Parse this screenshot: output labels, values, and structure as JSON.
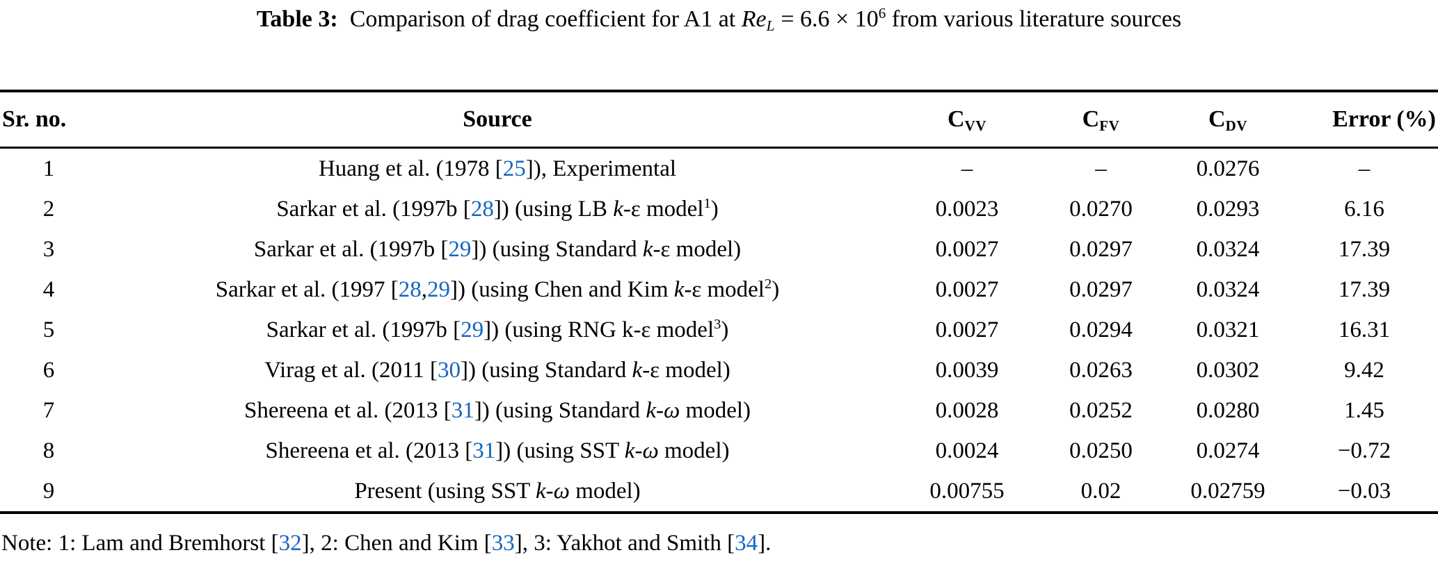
{
  "colors": {
    "text": "#000000",
    "background": "#ffffff",
    "citation_blue": "#1565c0"
  },
  "caption": {
    "segments": [
      {
        "t": "Table 3:",
        "s": "b"
      },
      {
        "t": " Comparison of drag coefficient for A1 at "
      },
      {
        "t": "Re",
        "s": "i"
      },
      {
        "t": "L",
        "s": "isub"
      },
      {
        "t": " = 6.6 × 10"
      },
      {
        "t": "6",
        "s": "sup"
      },
      {
        "t": " from various literature sources"
      }
    ]
  },
  "table": {
    "headers": {
      "sr_no": "Sr. no.",
      "source": "Source",
      "cvv": [
        {
          "t": "C"
        },
        {
          "t": "VV",
          "s": "sub"
        }
      ],
      "cfv": [
        {
          "t": "C"
        },
        {
          "t": "FV",
          "s": "sub"
        }
      ],
      "cdv": [
        {
          "t": "C"
        },
        {
          "t": "DV",
          "s": "sub"
        }
      ],
      "error": "Error (%)"
    },
    "rows": [
      {
        "sr": "1",
        "source": [
          {
            "t": "Huang et al. (1978 ["
          },
          {
            "t": "25",
            "s": "cite"
          },
          {
            "t": "]), Experimental"
          }
        ],
        "cvv": "–",
        "cfv": "–",
        "cdv": "0.0276",
        "error": "–"
      },
      {
        "sr": "2",
        "source": [
          {
            "t": "Sarkar et al. (1997b ["
          },
          {
            "t": "28",
            "s": "cite"
          },
          {
            "t": "]) (using LB "
          },
          {
            "t": "k",
            "s": "i"
          },
          {
            "t": "-ε model"
          },
          {
            "t": "1",
            "s": "sup"
          },
          {
            "t": ")"
          }
        ],
        "cvv": "0.0023",
        "cfv": "0.0270",
        "cdv": "0.0293",
        "error": "6.16"
      },
      {
        "sr": "3",
        "source": [
          {
            "t": "Sarkar et al. (1997b ["
          },
          {
            "t": "29",
            "s": "cite"
          },
          {
            "t": "]) (using Standard "
          },
          {
            "t": "k",
            "s": "i"
          },
          {
            "t": "-ε model)"
          }
        ],
        "cvv": "0.0027",
        "cfv": "0.0297",
        "cdv": "0.0324",
        "error": "17.39"
      },
      {
        "sr": "4",
        "source": [
          {
            "t": "Sarkar et al. (1997 ["
          },
          {
            "t": "28",
            "s": "cite"
          },
          {
            "t": ","
          },
          {
            "t": "29",
            "s": "cite"
          },
          {
            "t": "]) (using Chen and Kim "
          },
          {
            "t": "k",
            "s": "i"
          },
          {
            "t": "-ε model"
          },
          {
            "t": "2",
            "s": "sup"
          },
          {
            "t": ")"
          }
        ],
        "cvv": "0.0027",
        "cfv": "0.0297",
        "cdv": "0.0324",
        "error": "17.39"
      },
      {
        "sr": "5",
        "source": [
          {
            "t": "Sarkar et al. (1997b ["
          },
          {
            "t": "29",
            "s": "cite"
          },
          {
            "t": "]) (using RNG k-ε model"
          },
          {
            "t": "3",
            "s": "sup"
          },
          {
            "t": ")"
          }
        ],
        "cvv": "0.0027",
        "cfv": "0.0294",
        "cdv": "0.0321",
        "error": "16.31"
      },
      {
        "sr": "6",
        "source": [
          {
            "t": "Virag et al. (2011 ["
          },
          {
            "t": "30",
            "s": "cite"
          },
          {
            "t": "]) (using Standard "
          },
          {
            "t": "k",
            "s": "i"
          },
          {
            "t": "-ε model)"
          }
        ],
        "cvv": "0.0039",
        "cfv": "0.0263",
        "cdv": "0.0302",
        "error": "9.42"
      },
      {
        "sr": "7",
        "source": [
          {
            "t": "Shereena et al. (2013 ["
          },
          {
            "t": "31",
            "s": "cite"
          },
          {
            "t": "]) (using Standard "
          },
          {
            "t": "k",
            "s": "i"
          },
          {
            "t": "-"
          },
          {
            "t": "ω",
            "s": "i"
          },
          {
            "t": " model)"
          }
        ],
        "cvv": "0.0028",
        "cfv": "0.0252",
        "cdv": "0.0280",
        "error": "1.45"
      },
      {
        "sr": "8",
        "source": [
          {
            "t": "Shereena et al. (2013 ["
          },
          {
            "t": "31",
            "s": "cite"
          },
          {
            "t": "]) (using SST "
          },
          {
            "t": "k",
            "s": "i"
          },
          {
            "t": "-"
          },
          {
            "t": "ω",
            "s": "i"
          },
          {
            "t": " model)"
          }
        ],
        "cvv": "0.0024",
        "cfv": "0.0250",
        "cdv": "0.0274",
        "error": "−0.72"
      },
      {
        "sr": "9",
        "source": [
          {
            "t": "Present (using SST "
          },
          {
            "t": "k",
            "s": "i"
          },
          {
            "t": "-"
          },
          {
            "t": "ω",
            "s": "i"
          },
          {
            "t": " model)"
          }
        ],
        "cvv": "0.00755",
        "cfv": "0.02",
        "cdv": "0.02759",
        "error": "−0.03"
      }
    ]
  },
  "note": {
    "segments": [
      {
        "t": "Note: 1: Lam and Bremhorst ["
      },
      {
        "t": "32",
        "s": "cite"
      },
      {
        "t": "], 2: Chen and Kim ["
      },
      {
        "t": "33",
        "s": "cite"
      },
      {
        "t": "], 3: Yakhot and Smith ["
      },
      {
        "t": "34",
        "s": "cite"
      },
      {
        "t": "]."
      }
    ]
  }
}
